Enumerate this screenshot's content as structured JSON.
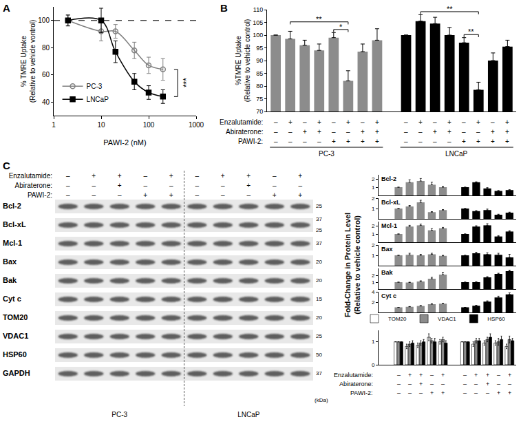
{
  "chart_data": [
    {
      "type": "line",
      "panel_label": "A",
      "x": [
        2,
        10,
        20,
        50,
        100,
        200
      ],
      "xlim": [
        1,
        1000
      ],
      "xticks": [
        1,
        10,
        100,
        1000
      ],
      "log": "x",
      "ylim": [
        30,
        110
      ],
      "yticks": [
        40,
        60,
        80,
        100
      ],
      "xlabel": "PAWI-2 (nM)",
      "ylabel": "% TMRE Uptake\n(Relative to vehicle vontrol)",
      "legend": "lower left",
      "grid": false,
      "reference_line": {
        "value": 100,
        "line_style": "dashed"
      },
      "significance": [
        {
          "x": 200,
          "text": "***"
        }
      ],
      "series": [
        {
          "name": "PC-3",
          "color": "#808080",
          "marker": "circle-open",
          "line_style": "solid",
          "values": [
            100,
            92,
            92,
            78,
            67,
            64
          ],
          "errors": [
            4,
            7,
            5,
            6,
            6,
            8
          ]
        },
        {
          "name": "LNCaP",
          "color": "#000000",
          "marker": "square",
          "line_style": "solid",
          "values": [
            100,
            100,
            77,
            55,
            47,
            44
          ],
          "errors": [
            4,
            9,
            8,
            6,
            5,
            5
          ]
        }
      ]
    },
    {
      "type": "bar",
      "panel_label": "B",
      "categories": [
        null,
        null,
        null,
        null,
        null,
        null,
        null,
        null,
        null,
        null,
        null,
        null,
        null,
        null,
        null,
        null
      ],
      "ylabel": "%TMRE Uptake\n(Relative to vehicle control)",
      "ylim": [
        70,
        110
      ],
      "yticks": [
        70,
        75,
        80,
        85,
        90,
        95,
        100,
        105,
        110
      ],
      "tick_labels": "y",
      "grid": false,
      "series": [
        {
          "name": "PC-3",
          "color": "#8c8c8c",
          "values": [
            100,
            98.5,
            96,
            94,
            99,
            82,
            93.5,
            98,
            null,
            null,
            null,
            null,
            null,
            null,
            null,
            null
          ],
          "errors": [
            0,
            3,
            2,
            2.5,
            2,
            4,
            3,
            4.5,
            null,
            null,
            null,
            null,
            null,
            null,
            null,
            null
          ]
        },
        {
          "name": "LNCaP",
          "color": "#000000",
          "values": [
            null,
            null,
            null,
            null,
            null,
            null,
            null,
            null,
            100,
            105.5,
            104.5,
            100,
            97,
            78.5,
            90,
            95.5
          ],
          "errors": [
            null,
            null,
            null,
            null,
            null,
            null,
            null,
            null,
            0,
            2.5,
            2.5,
            3,
            2,
            3,
            3,
            2.5
          ]
        }
      ],
      "treatments": [
        {
          "label": "Enzalutamide:",
          "marks": [
            "–",
            "+",
            "–",
            "+",
            "–",
            "+",
            "–",
            "+",
            "–",
            "+",
            "–",
            "+",
            "–",
            "+",
            "–",
            "+"
          ]
        },
        {
          "label": "Abiraterone:",
          "marks": [
            "–",
            "–",
            "+",
            "+",
            "–",
            "–",
            "+",
            "+",
            "–",
            "–",
            "+",
            "+",
            "–",
            "–",
            "+",
            "+"
          ]
        },
        {
          "label": "PAWI-2:",
          "marks": [
            "–",
            "–",
            "–",
            "–",
            "+",
            "+",
            "+",
            "+",
            "–",
            "–",
            "–",
            "–",
            "+",
            "+",
            "+",
            "+"
          ]
        }
      ],
      "significance": [
        {
          "from": 1,
          "to": 5,
          "text": "**"
        },
        {
          "from": 4,
          "to": 5,
          "text": "*"
        },
        {
          "from": 9,
          "to": 13,
          "text": "**"
        },
        {
          "from": 12,
          "to": 13,
          "text": "**"
        }
      ]
    },
    {
      "type": "bar",
      "title": "Bcl-2",
      "categories": [
        null,
        null,
        null,
        null,
        null,
        null,
        null,
        null,
        null,
        null
      ],
      "ylim": [
        0,
        2.5
      ],
      "yticks": [
        1,
        2
      ],
      "tick_labels": "y",
      "grid": false,
      "series": [
        {
          "name": "PC-3",
          "color": "#8c8c8c",
          "values": [
            1,
            1.6,
            1.75,
            1.3,
            1.0,
            null,
            null,
            null,
            null,
            null
          ],
          "errors": [
            0,
            0.3,
            0.3,
            0.3,
            0.1,
            null,
            null,
            null,
            null,
            null
          ]
        },
        {
          "name": "LNCaP",
          "color": "#000000",
          "values": [
            null,
            null,
            null,
            null,
            null,
            1,
            1.6,
            0.85,
            0.55,
            0.65
          ],
          "errors": [
            null,
            null,
            null,
            null,
            null,
            0,
            0.05,
            0.1,
            0.05,
            0.05
          ]
        }
      ]
    },
    {
      "type": "bar",
      "title": "Bcl-xL",
      "categories": [
        null,
        null,
        null,
        null,
        null,
        null,
        null,
        null,
        null,
        null
      ],
      "ylim": [
        0,
        2
      ],
      "yticks": [
        1,
        2
      ],
      "tick_labels": "y",
      "grid": false,
      "series": [
        {
          "name": "PC-3",
          "color": "#8c8c8c",
          "values": [
            1,
            1.2,
            1.6,
            0.65,
            0.85,
            null,
            null,
            null,
            null,
            null
          ],
          "errors": [
            0,
            0.1,
            0.2,
            0.05,
            0.05,
            null,
            null,
            null,
            null,
            null
          ]
        },
        {
          "name": "LNCaP",
          "color": "#000000",
          "values": [
            null,
            null,
            null,
            null,
            null,
            1,
            0.75,
            0.85,
            0.4,
            0.6
          ],
          "errors": [
            null,
            null,
            null,
            null,
            null,
            0,
            0.05,
            0.1,
            0.05,
            0.05
          ]
        }
      ]
    },
    {
      "type": "bar",
      "title": "Mcl-1",
      "categories": [
        null,
        null,
        null,
        null,
        null,
        null,
        null,
        null,
        null,
        null
      ],
      "ylim": [
        0,
        2.5
      ],
      "yticks": [
        1,
        2
      ],
      "tick_labels": "y",
      "grid": false,
      "series": [
        {
          "name": "PC-3",
          "color": "#8c8c8c",
          "values": [
            1,
            1.9,
            2.05,
            1.45,
            1.7,
            null,
            null,
            null,
            null,
            null
          ],
          "errors": [
            0,
            0.15,
            0.15,
            0.2,
            0.1,
            null,
            null,
            null,
            null,
            null
          ]
        },
        {
          "name": "LNCaP",
          "color": "#000000",
          "values": [
            null,
            null,
            null,
            null,
            null,
            1,
            1.9,
            2.05,
            0.7,
            1.3
          ],
          "errors": [
            null,
            null,
            null,
            null,
            null,
            0,
            0.1,
            0.2,
            0.1,
            0.1
          ]
        }
      ]
    },
    {
      "type": "bar",
      "title": "Bax",
      "categories": [
        null,
        null,
        null,
        null,
        null,
        null,
        null,
        null,
        null,
        null
      ],
      "ylim": [
        0,
        2
      ],
      "yticks": [
        1,
        2
      ],
      "tick_labels": "y",
      "grid": false,
      "series": [
        {
          "name": "PC-3",
          "color": "#8c8c8c",
          "values": [
            1,
            1.05,
            1,
            1.1,
            0.95,
            null,
            null,
            null,
            null,
            null
          ],
          "errors": [
            0,
            0.15,
            0.1,
            0.1,
            0.05,
            null,
            null,
            null,
            null,
            null
          ]
        },
        {
          "name": "LNCaP",
          "color": "#000000",
          "values": [
            null,
            null,
            null,
            null,
            null,
            1,
            1.2,
            1.1,
            1.05,
            0.8
          ],
          "errors": [
            null,
            null,
            null,
            null,
            null,
            0,
            0.1,
            0.15,
            0.15,
            0.3
          ]
        }
      ]
    },
    {
      "type": "bar",
      "title": "Bak",
      "categories": [
        null,
        null,
        null,
        null,
        null,
        null,
        null,
        null,
        null,
        null
      ],
      "ylim": [
        0,
        3
      ],
      "yticks": [
        1,
        2
      ],
      "tick_labels": "y",
      "grid": false,
      "series": [
        {
          "name": "PC-3",
          "color": "#8c8c8c",
          "values": [
            1,
            0.95,
            1.1,
            1.5,
            2.1,
            null,
            null,
            null,
            null,
            null
          ],
          "errors": [
            0,
            0.05,
            0.1,
            0.2,
            0.35,
            null,
            null,
            null,
            null,
            null
          ]
        },
        {
          "name": "LNCaP",
          "color": "#000000",
          "values": [
            null,
            null,
            null,
            null,
            null,
            1,
            1,
            1.7,
            2.2,
            2.6
          ],
          "errors": [
            null,
            null,
            null,
            null,
            null,
            0,
            0.05,
            0.1,
            0.1,
            0.15
          ]
        }
      ]
    },
    {
      "type": "bar",
      "title": "Cyt c",
      "categories": [
        null,
        null,
        null,
        null,
        null,
        null,
        null,
        null,
        null,
        null
      ],
      "ylim": [
        0,
        4
      ],
      "yticks": [
        2,
        4
      ],
      "tick_labels": "y",
      "grid": false,
      "series": [
        {
          "name": "PC-3",
          "color": "#8c8c8c",
          "values": [
            1,
            1.1,
            1.25,
            1.6,
            1.7,
            null,
            null,
            null,
            null,
            null
          ],
          "errors": [
            0,
            0.05,
            0.1,
            0.1,
            0.05,
            null,
            null,
            null,
            null,
            null
          ]
        },
        {
          "name": "LNCaP",
          "color": "#000000",
          "values": [
            null,
            null,
            null,
            null,
            null,
            1,
            1.3,
            2.1,
            2.9,
            3.5
          ],
          "errors": [
            null,
            null,
            null,
            null,
            null,
            0,
            0.1,
            0.15,
            0.25,
            0.3
          ]
        }
      ]
    },
    {
      "type": "bar",
      "categories": [
        null,
        null,
        null,
        null,
        null,
        null,
        null,
        null,
        null,
        null
      ],
      "ylim": [
        0,
        1.5
      ],
      "yticks": [
        0,
        1
      ],
      "tick_labels": "y",
      "grid": false,
      "legend": "top",
      "series": [
        {
          "name": "TOM20",
          "color": "#ffffff",
          "values": [
            1,
            0.8,
            0.85,
            1.2,
            1.0,
            1,
            0.9,
            0.95,
            0.95,
            0.8
          ],
          "errors": [
            0,
            0.1,
            0.1,
            0.15,
            0.1,
            0,
            0.1,
            0.1,
            0.1,
            0.1
          ]
        },
        {
          "name": "VDAC1",
          "color": "#8c8c8c",
          "values": [
            1,
            0.9,
            0.95,
            1.05,
            1.1,
            1,
            1.05,
            1.1,
            1.0,
            1.1
          ],
          "errors": [
            0,
            0.1,
            0.1,
            0.1,
            0.1,
            0,
            0.1,
            0.1,
            0.15,
            0.15
          ]
        },
        {
          "name": "HSP60",
          "color": "#000000",
          "values": [
            1,
            0.95,
            1.0,
            1.0,
            0.95,
            1,
            1.05,
            1.2,
            1.1,
            1.05
          ],
          "errors": [
            0,
            0.1,
            0.1,
            0.15,
            0.1,
            0,
            0.1,
            0.15,
            0.15,
            0.1
          ]
        }
      ],
      "treatments": [
        {
          "label": "Enzalutamide:",
          "marks": [
            "–",
            "+",
            "+",
            "–",
            "+",
            "–",
            "+",
            "+",
            "–",
            "+"
          ]
        },
        {
          "label": "Abiraterone:",
          "marks": [
            "–",
            "–",
            "+",
            "–",
            "–",
            "–",
            "–",
            "+",
            "–",
            "–"
          ]
        },
        {
          "label": "PAWI-2:",
          "marks": [
            "–",
            "–",
            "–",
            "+",
            "+",
            "–",
            "–",
            "–",
            "+",
            "+"
          ]
        }
      ]
    }
  ],
  "figure": {
    "C_label": "C",
    "C_ylabel": "Fold-Change in Protein Level\n(Relative to vehicle control)"
  },
  "blot": {
    "treatments": [
      {
        "label": "Enzalutamide:",
        "marks": [
          "–",
          "+",
          "+",
          "–",
          "+",
          "–",
          "+",
          "+",
          "–",
          "+"
        ]
      },
      {
        "label": "Abiraterone:",
        "marks": [
          "–",
          "–",
          "+",
          "–",
          "–",
          "–",
          "–",
          "+",
          "–",
          "–"
        ]
      },
      {
        "label": "PAWI-2:",
        "marks": [
          "–",
          "–",
          "–",
          "+",
          "+",
          "–",
          "–",
          "–",
          "+",
          "+"
        ]
      }
    ],
    "proteins": [
      {
        "name": "Bcl-2",
        "kDa": [
          25
        ]
      },
      {
        "name": "Bcl-xL",
        "kDa": [
          37,
          25
        ]
      },
      {
        "name": "Mcl-1",
        "kDa": [
          37
        ]
      },
      {
        "name": "Bax",
        "kDa": [
          20
        ]
      },
      {
        "name": "Bak",
        "kDa": [
          20
        ]
      },
      {
        "name": "Cyt c",
        "kDa": [
          15
        ]
      },
      {
        "name": "TOM20",
        "kDa": [
          20
        ]
      },
      {
        "name": "VDAC1",
        "kDa": [
          25
        ]
      },
      {
        "name": "HSP60",
        "kDa": [
          50
        ]
      },
      {
        "name": "GAPDH",
        "kDa": [
          37
        ]
      }
    ],
    "groups": [
      "PC-3",
      "LNCaP"
    ],
    "unit": "(kDa)"
  }
}
